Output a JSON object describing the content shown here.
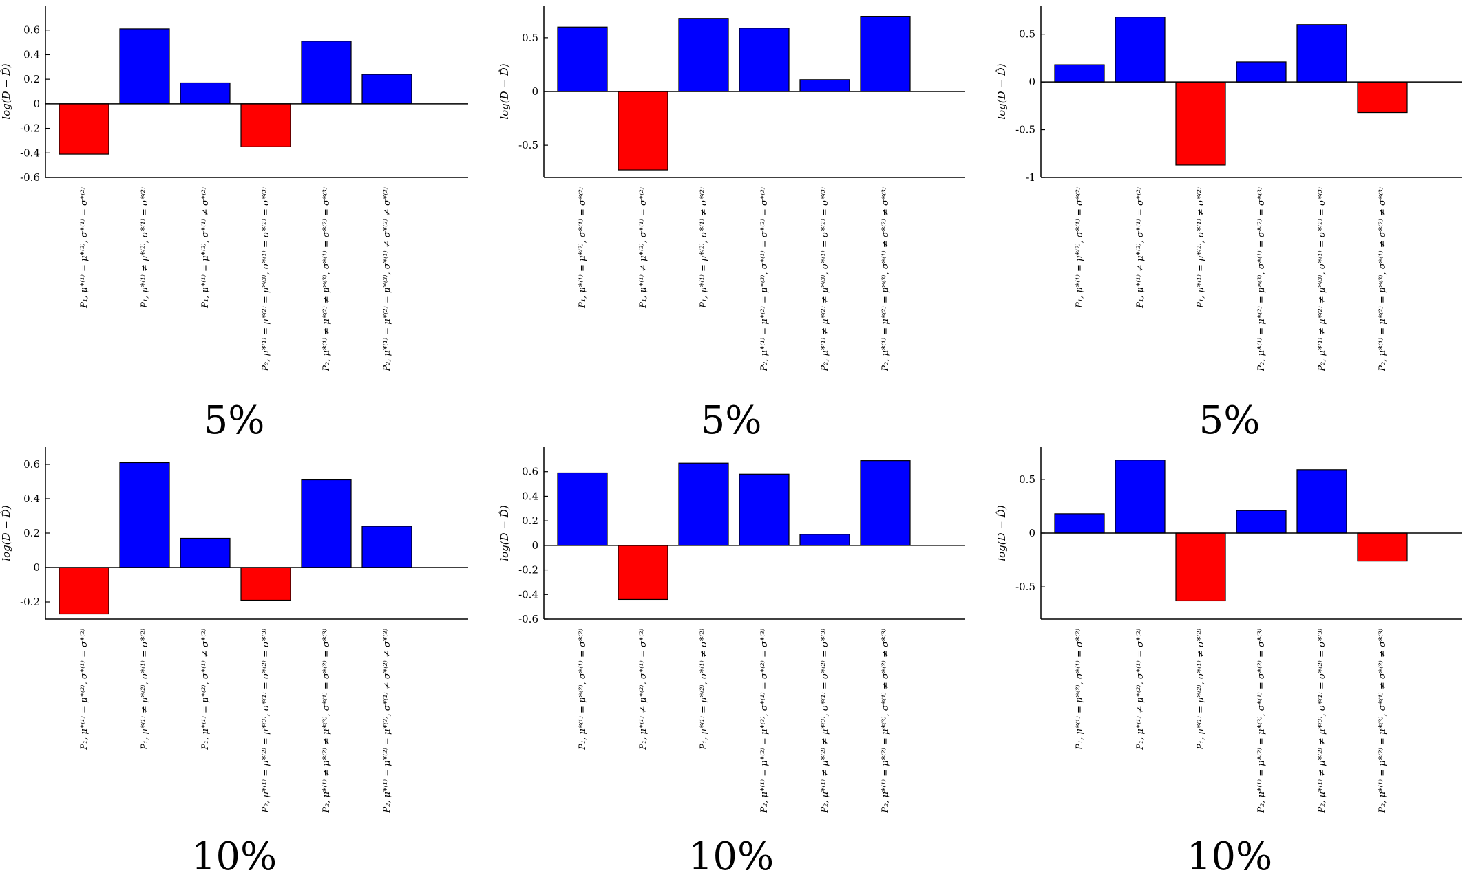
{
  "colors": {
    "negative_bar": "#ff0000",
    "positive_bar": "#0000ff",
    "bar_stroke": "#000000"
  },
  "chart_data": [
    {
      "type": "bar",
      "panel_label": "5%",
      "ylabel": "log(D − D̂)",
      "ylim": [
        -0.6,
        0.8
      ],
      "yticks": [
        -0.6,
        -0.4,
        -0.2,
        0,
        0.2,
        0.4,
        0.6
      ],
      "ytick_labels": [
        "-0.6",
        "-0.4",
        "-0.2",
        "0",
        "0.2",
        "0.4",
        "0.6"
      ],
      "categories": [
        "P₁, μ*⁽¹⁾ = μ*⁽²⁾, σ*⁽¹⁾ = σ*⁽²⁾",
        "P₁, μ*⁽¹⁾ ≠ μ*⁽²⁾, σ*⁽¹⁾ = σ*⁽²⁾",
        "P₁, μ*⁽¹⁾ = μ*⁽²⁾, σ*⁽¹⁾ ≠ σ*⁽²⁾",
        "P₂, μ*⁽¹⁾ = μ*⁽²⁾ = μ*⁽³⁾, σ*⁽¹⁾ = σ*⁽²⁾ = σ*⁽³⁾",
        "P₂, μ*⁽¹⁾ ≠ μ*⁽²⁾ ≠ μ*⁽³⁾, σ*⁽¹⁾ = σ*⁽²⁾ = σ*⁽³⁾",
        "P₂, μ*⁽¹⁾ = μ*⁽²⁾ = μ*⁽³⁾, σ*⁽¹⁾ ≠ σ*⁽²⁾ ≠ σ*⁽³⁾"
      ],
      "values": [
        -0.41,
        0.61,
        0.17,
        -0.35,
        0.51,
        0.24
      ],
      "grid": false
    },
    {
      "type": "bar",
      "panel_label": "5%",
      "ylabel": "log(D − D̂)",
      "ylim": [
        -0.8,
        0.8
      ],
      "yticks": [
        -0.5,
        0,
        0.5
      ],
      "ytick_labels": [
        "-0.5",
        "0",
        "0.5"
      ],
      "categories": [
        "P₁, μ*⁽¹⁾ = μ*⁽²⁾, σ*⁽¹⁾ = σ*⁽²⁾",
        "P₁, μ*⁽¹⁾ ≠ μ*⁽²⁾, σ*⁽¹⁾ = σ*⁽²⁾",
        "P₁, μ*⁽¹⁾ = μ*⁽²⁾, σ*⁽¹⁾ ≠ σ*⁽²⁾",
        "P₂, μ*⁽¹⁾ = μ*⁽²⁾ = μ*⁽³⁾, σ*⁽¹⁾ = σ*⁽²⁾ = σ*⁽³⁾",
        "P₂, μ*⁽¹⁾ ≠ μ*⁽²⁾ ≠ μ*⁽³⁾, σ*⁽¹⁾ = σ*⁽²⁾ = σ*⁽³⁾",
        "P₂, μ*⁽¹⁾ = μ*⁽²⁾ = μ*⁽³⁾, σ*⁽¹⁾ ≠ σ*⁽²⁾ ≠ σ*⁽³⁾"
      ],
      "values": [
        0.6,
        -0.73,
        0.68,
        0.59,
        0.11,
        0.7
      ],
      "grid": false
    },
    {
      "type": "bar",
      "panel_label": "5%",
      "ylabel": "log(D − D̂)",
      "ylim": [
        -1,
        0.8
      ],
      "yticks": [
        -1,
        -0.5,
        0,
        0.5
      ],
      "ytick_labels": [
        "-1",
        "-0.5",
        "0",
        "0.5"
      ],
      "categories": [
        "P₁, μ*⁽¹⁾ = μ*⁽²⁾, σ*⁽¹⁾ = σ*⁽²⁾",
        "P₁, μ*⁽¹⁾ ≠ μ*⁽²⁾, σ*⁽¹⁾ = σ*⁽²⁾",
        "P₁, μ*⁽¹⁾ = μ*⁽²⁾, σ*⁽¹⁾ ≠ σ*⁽²⁾",
        "P₂, μ*⁽¹⁾ = μ*⁽²⁾ = μ*⁽³⁾, σ*⁽¹⁾ = σ*⁽²⁾ = σ*⁽³⁾",
        "P₂, μ*⁽¹⁾ ≠ μ*⁽²⁾ ≠ μ*⁽³⁾, σ*⁽¹⁾ = σ*⁽²⁾ = σ*⁽³⁾",
        "P₂, μ*⁽¹⁾ = μ*⁽²⁾ = μ*⁽³⁾, σ*⁽¹⁾ ≠ σ*⁽²⁾ ≠ σ*⁽³⁾"
      ],
      "values": [
        0.18,
        0.68,
        -0.87,
        0.21,
        0.6,
        -0.32
      ],
      "grid": false
    },
    {
      "type": "bar",
      "panel_label": "10%",
      "ylabel": "log(D − D̂)",
      "ylim": [
        -0.3,
        0.7
      ],
      "yticks": [
        -0.2,
        0,
        0.2,
        0.4,
        0.6
      ],
      "ytick_labels": [
        "-0.2",
        "0",
        "0.2",
        "0.4",
        "0.6"
      ],
      "categories": [
        "P₁, μ*⁽¹⁾ = μ*⁽²⁾, σ*⁽¹⁾ = σ*⁽²⁾",
        "P₁, μ*⁽¹⁾ ≠ μ*⁽²⁾, σ*⁽¹⁾ = σ*⁽²⁾",
        "P₁, μ*⁽¹⁾ = μ*⁽²⁾, σ*⁽¹⁾ ≠ σ*⁽²⁾",
        "P₂, μ*⁽¹⁾ = μ*⁽²⁾ = μ*⁽³⁾, σ*⁽¹⁾ = σ*⁽²⁾ = σ*⁽³⁾",
        "P₂, μ*⁽¹⁾ ≠ μ*⁽²⁾ ≠ μ*⁽³⁾, σ*⁽¹⁾ = σ*⁽²⁾ = σ*⁽³⁾",
        "P₂, μ*⁽¹⁾ = μ*⁽²⁾ = μ*⁽³⁾, σ*⁽¹⁾ ≠ σ*⁽²⁾ ≠ σ*⁽³⁾"
      ],
      "values": [
        -0.27,
        0.61,
        0.17,
        -0.19,
        0.51,
        0.24
      ],
      "grid": false
    },
    {
      "type": "bar",
      "panel_label": "10%",
      "ylabel": "log(D − D̂)",
      "ylim": [
        -0.6,
        0.8
      ],
      "yticks": [
        -0.6,
        -0.4,
        -0.2,
        0,
        0.2,
        0.4,
        0.6
      ],
      "ytick_labels": [
        "-0.6",
        "-0.4",
        "-0.2",
        "0",
        "0.2",
        "0.4",
        "0.6"
      ],
      "categories": [
        "P₁, μ*⁽¹⁾ = μ*⁽²⁾, σ*⁽¹⁾ = σ*⁽²⁾",
        "P₁, μ*⁽¹⁾ ≠ μ*⁽²⁾, σ*⁽¹⁾ = σ*⁽²⁾",
        "P₁, μ*⁽¹⁾ = μ*⁽²⁾, σ*⁽¹⁾ ≠ σ*⁽²⁾",
        "P₂, μ*⁽¹⁾ = μ*⁽²⁾ = μ*⁽³⁾, σ*⁽¹⁾ = σ*⁽²⁾ = σ*⁽³⁾",
        "P₂, μ*⁽¹⁾ ≠ μ*⁽²⁾ ≠ μ*⁽³⁾, σ*⁽¹⁾ = σ*⁽²⁾ = σ*⁽³⁾",
        "P₂, μ*⁽¹⁾ = μ*⁽²⁾ = μ*⁽³⁾, σ*⁽¹⁾ ≠ σ*⁽²⁾ ≠ σ*⁽³⁾"
      ],
      "values": [
        0.59,
        -0.44,
        0.67,
        0.58,
        0.09,
        0.69
      ],
      "grid": false
    },
    {
      "type": "bar",
      "panel_label": "10%",
      "ylabel": "log(D − D̂)",
      "ylim": [
        -0.8,
        0.8
      ],
      "yticks": [
        -0.5,
        0,
        0.5
      ],
      "ytick_labels": [
        "-0.5",
        "0",
        "0.5"
      ],
      "categories": [
        "P₁, μ*⁽¹⁾ = μ*⁽²⁾, σ*⁽¹⁾ = σ*⁽²⁾",
        "P₁, μ*⁽¹⁾ ≠ μ*⁽²⁾, σ*⁽¹⁾ = σ*⁽²⁾",
        "P₁, μ*⁽¹⁾ = μ*⁽²⁾, σ*⁽¹⁾ ≠ σ*⁽²⁾",
        "P₂, μ*⁽¹⁾ = μ*⁽²⁾ = μ*⁽³⁾, σ*⁽¹⁾ = σ*⁽²⁾ = σ*⁽³⁾",
        "P₂, μ*⁽¹⁾ ≠ μ*⁽²⁾ ≠ μ*⁽³⁾, σ*⁽¹⁾ = σ*⁽²⁾ = σ*⁽³⁾",
        "P₂, μ*⁽¹⁾ = μ*⁽²⁾ = μ*⁽³⁾, σ*⁽¹⁾ ≠ σ*⁽²⁾ ≠ σ*⁽³⁾"
      ],
      "values": [
        0.18,
        0.68,
        -0.63,
        0.21,
        0.59,
        -0.26
      ],
      "grid": false
    }
  ]
}
